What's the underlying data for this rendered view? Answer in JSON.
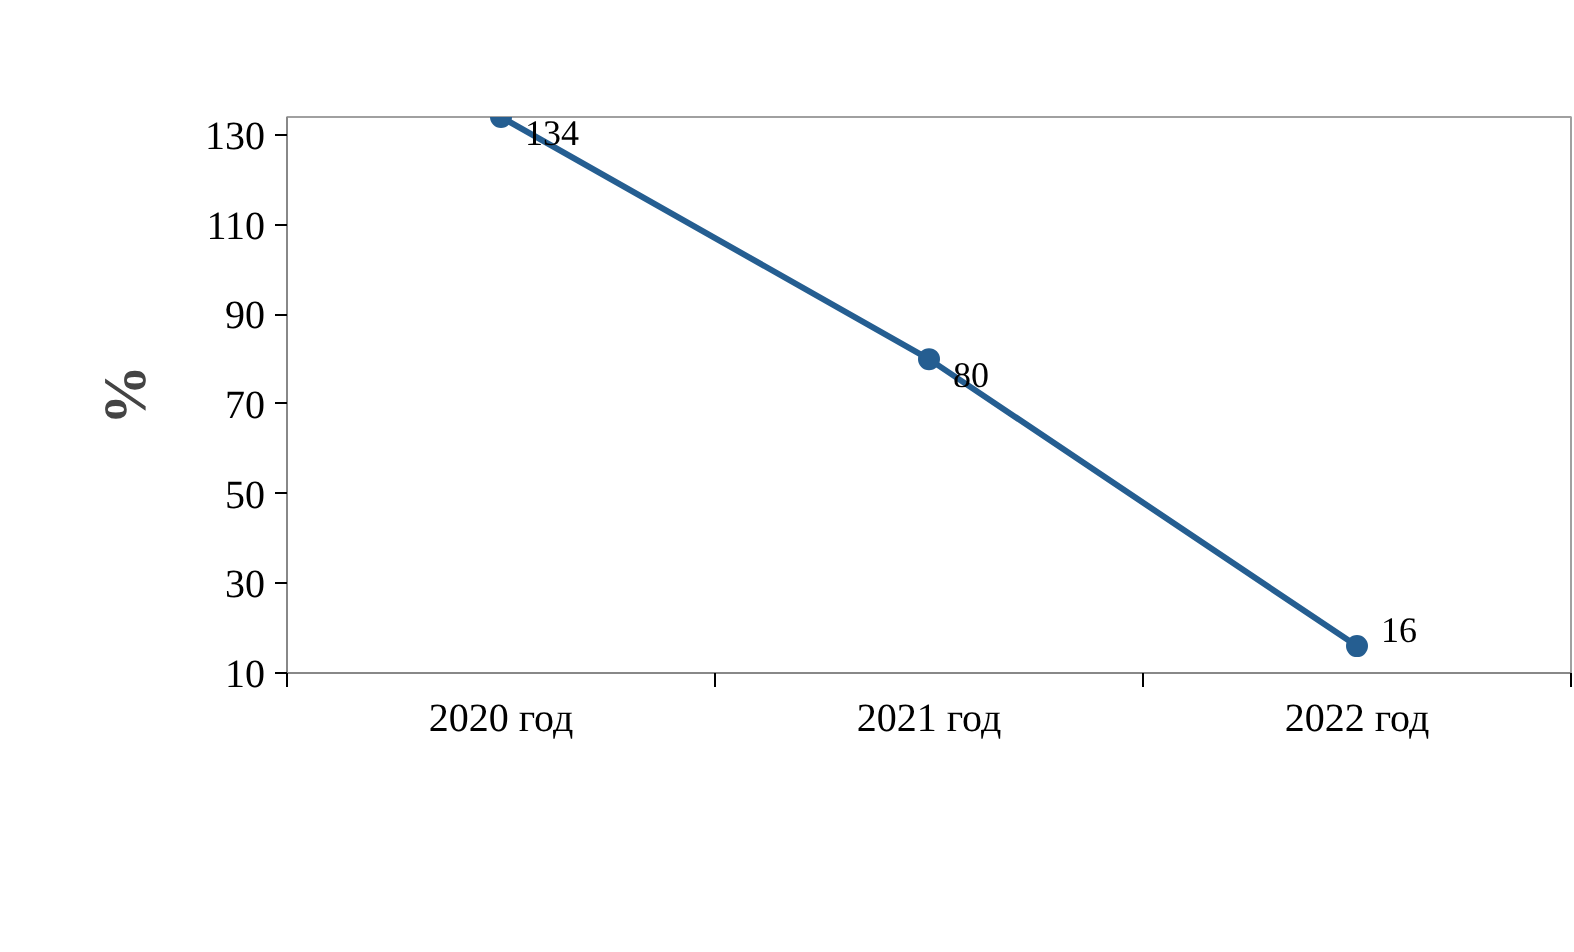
{
  "chart_data": {
    "type": "line",
    "ylabel": "%",
    "categories": [
      "2020 год",
      "2021 год",
      "2022 год"
    ],
    "series": [
      {
        "color": "#255e91",
        "values": [
          134,
          80,
          16
        ]
      }
    ],
    "ylim": [
      10,
      134
    ],
    "yticks": [
      10,
      30,
      50,
      70,
      90,
      110,
      130
    ],
    "data_labels": true,
    "marker": "circle",
    "grid": false
  }
}
